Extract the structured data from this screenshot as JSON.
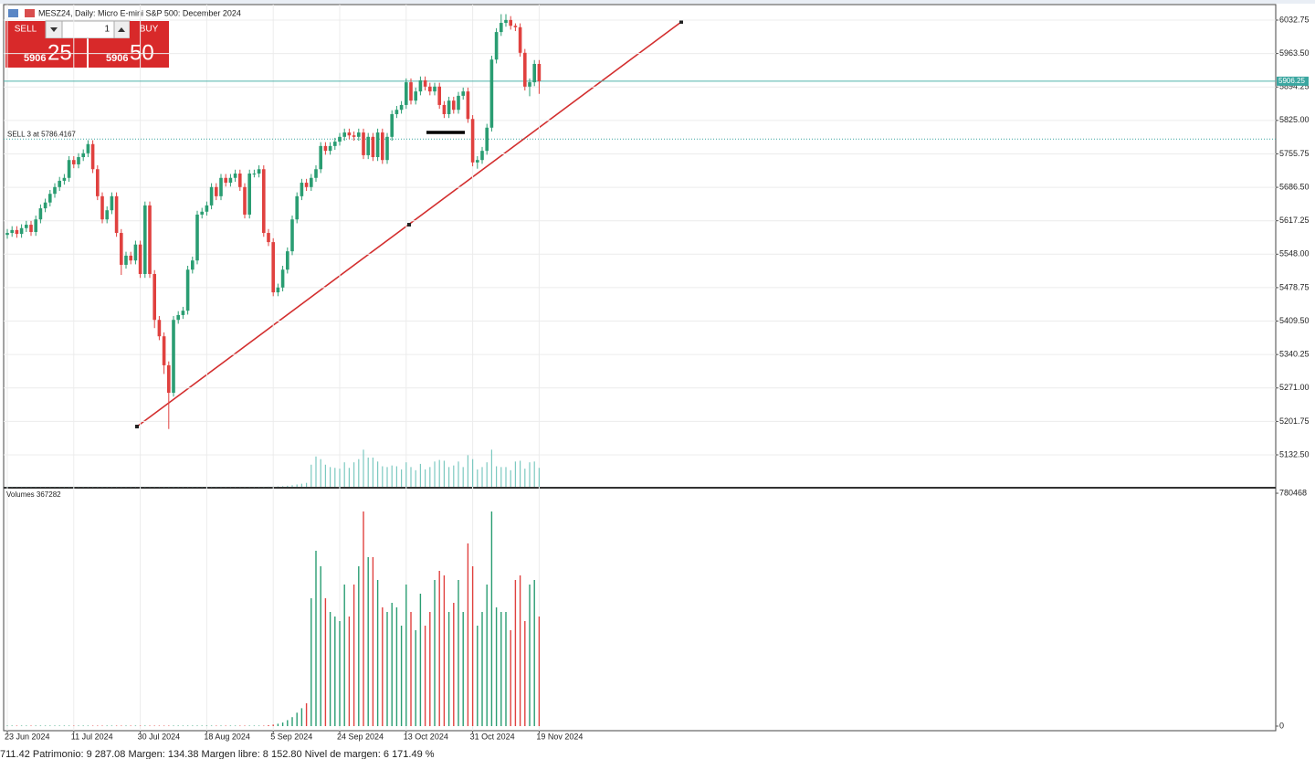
{
  "header": {
    "title": "MESZ24, Daily:  Micro E-mini S&P 500: December 2024"
  },
  "trade_panel": {
    "sell": "SELL",
    "buy": "BUY",
    "volume": "1",
    "bid_big": "5906",
    "bid_small": "25",
    "ask_big": "5906",
    "ask_small": "50"
  },
  "status_bar": "711.42  Patrimonio: 9 287.08  Margen: 134.38  Margen libre: 8 152.80  Nivel de margen: 6 171.49 %",
  "chart_data": [
    {
      "type": "candlestick",
      "up_color": "#2a9d72",
      "down_color": "#e0413f",
      "grid": true,
      "current_price": {
        "value": 5906.25,
        "label": "5906.25"
      },
      "order_line": {
        "value": 5786.4167,
        "label": "SELL 3 at 5786.4167"
      },
      "categories": [
        "23 Jun 2024",
        null,
        null,
        null,
        null,
        null,
        null,
        null,
        null,
        null,
        null,
        null,
        null,
        null,
        "11 Jul 2024",
        null,
        null,
        null,
        null,
        null,
        null,
        null,
        null,
        null,
        null,
        null,
        null,
        null,
        "30 Jul 2024",
        null,
        null,
        null,
        null,
        null,
        null,
        null,
        null,
        null,
        null,
        null,
        null,
        null,
        "18 Aug 2024",
        null,
        null,
        null,
        null,
        null,
        null,
        null,
        null,
        null,
        null,
        null,
        null,
        null,
        "5 Sep 2024",
        null,
        null,
        null,
        null,
        null,
        null,
        null,
        null,
        null,
        null,
        null,
        null,
        null,
        "24 Sep 2024",
        null,
        null,
        null,
        null,
        null,
        null,
        null,
        null,
        null,
        null,
        null,
        null,
        null,
        "13 Oct 2024",
        null,
        null,
        null,
        null,
        null,
        null,
        null,
        null,
        null,
        null,
        null,
        null,
        null,
        "31 Oct 2024",
        null,
        null,
        null,
        null,
        null,
        null,
        null,
        null,
        null,
        null,
        null,
        null,
        null,
        "19 Nov 2024"
      ],
      "open": [
        5588,
        5592,
        5598,
        5590,
        5602,
        5609,
        5594,
        5620,
        5643,
        5655,
        5673,
        5687,
        5700,
        5706,
        5743,
        5734,
        5749,
        5757,
        5776,
        5724,
        5668,
        5620,
        5639,
        5668,
        5592,
        5526,
        5545,
        5535,
        5568,
        5507,
        5649,
        5507,
        5412,
        5378,
        5318,
        5261,
        5412,
        5422,
        5431,
        5516,
        5535,
        5630,
        5636,
        5649,
        5687,
        5668,
        5706,
        5696,
        5706,
        5715,
        5687,
        5630,
        5715,
        5715,
        5724,
        5592,
        5573,
        5469,
        5479,
        5516,
        5554,
        5620,
        5668,
        5696,
        5687,
        5706,
        5724,
        5772,
        5762,
        5772,
        5781,
        5791,
        5800,
        5794,
        5791,
        5800,
        5753,
        5791,
        5749,
        5800,
        5743,
        5791,
        5838,
        5847,
        5857,
        5904,
        5866,
        5885,
        5908,
        5895,
        5885,
        5895,
        5857,
        5838,
        5866,
        5847,
        5876,
        5885,
        5828,
        5738,
        5743,
        5762,
        5810,
        5951,
        6008,
        6027,
        6033,
        6021,
        6018,
        5965,
        5895,
        5904,
        5942
      ],
      "high": [
        5600,
        5606,
        5606,
        5610,
        5617,
        5617,
        5628,
        5651,
        5663,
        5681,
        5695,
        5708,
        5714,
        5751,
        5751,
        5757,
        5765,
        5784,
        5784,
        5732,
        5676,
        5647,
        5676,
        5676,
        5600,
        5553,
        5553,
        5576,
        5576,
        5657,
        5657,
        5515,
        5420,
        5386,
        5326,
        5420,
        5430,
        5439,
        5524,
        5543,
        5638,
        5644,
        5657,
        5695,
        5695,
        5714,
        5714,
        5714,
        5723,
        5723,
        5695,
        5723,
        5723,
        5732,
        5732,
        5600,
        5581,
        5487,
        5524,
        5562,
        5628,
        5676,
        5704,
        5704,
        5714,
        5732,
        5780,
        5780,
        5780,
        5789,
        5799,
        5808,
        5808,
        5802,
        5808,
        5808,
        5799,
        5799,
        5808,
        5808,
        5799,
        5846,
        5855,
        5865,
        5912,
        5912,
        5893,
        5916,
        5916,
        5903,
        5903,
        5903,
        5865,
        5874,
        5874,
        5884,
        5893,
        5893,
        5836,
        5751,
        5770,
        5818,
        5959,
        6016,
        6045,
        6045,
        6041,
        6026,
        6026,
        5973,
        5912,
        5950,
        5950
      ],
      "low": [
        5580,
        5584,
        5582,
        5582,
        5594,
        5586,
        5586,
        5612,
        5635,
        5647,
        5665,
        5679,
        5692,
        5698,
        5726,
        5726,
        5741,
        5749,
        5716,
        5660,
        5612,
        5612,
        5631,
        5584,
        5505,
        5518,
        5527,
        5527,
        5499,
        5499,
        5499,
        5395,
        5370,
        5300,
        5186,
        5253,
        5404,
        5414,
        5423,
        5508,
        5527,
        5622,
        5628,
        5641,
        5660,
        5660,
        5688,
        5688,
        5698,
        5679,
        5622,
        5622,
        5707,
        5707,
        5584,
        5565,
        5461,
        5461,
        5471,
        5508,
        5546,
        5612,
        5660,
        5679,
        5679,
        5698,
        5716,
        5754,
        5754,
        5764,
        5773,
        5783,
        5786,
        5783,
        5783,
        5745,
        5745,
        5741,
        5741,
        5735,
        5735,
        5783,
        5830,
        5839,
        5849,
        5858,
        5858,
        5877,
        5887,
        5877,
        5877,
        5849,
        5830,
        5830,
        5839,
        5839,
        5868,
        5820,
        5730,
        5725,
        5735,
        5754,
        5802,
        5943,
        6000,
        6019,
        6013,
        6010,
        5957,
        5887,
        5875,
        5896,
        5880
      ],
      "close": [
        5592,
        5598,
        5590,
        5602,
        5609,
        5594,
        5620,
        5643,
        5655,
        5673,
        5687,
        5700,
        5706,
        5743,
        5734,
        5749,
        5757,
        5776,
        5724,
        5668,
        5620,
        5639,
        5668,
        5592,
        5526,
        5545,
        5535,
        5568,
        5507,
        5649,
        5507,
        5412,
        5378,
        5318,
        5261,
        5412,
        5422,
        5431,
        5516,
        5535,
        5630,
        5636,
        5649,
        5687,
        5668,
        5706,
        5696,
        5706,
        5715,
        5687,
        5630,
        5715,
        5715,
        5724,
        5592,
        5573,
        5469,
        5479,
        5516,
        5554,
        5620,
        5668,
        5696,
        5687,
        5706,
        5724,
        5772,
        5762,
        5772,
        5781,
        5791,
        5800,
        5794,
        5791,
        5800,
        5753,
        5791,
        5749,
        5800,
        5743,
        5791,
        5838,
        5847,
        5857,
        5904,
        5866,
        5885,
        5908,
        5895,
        5885,
        5895,
        5857,
        5838,
        5866,
        5847,
        5876,
        5885,
        5828,
        5738,
        5743,
        5762,
        5810,
        5951,
        6008,
        6027,
        6033,
        6021,
        6018,
        5965,
        5895,
        5904,
        5942,
        5906.25
      ],
      "ylim": [
        5066.3,
        6064.9
      ],
      "yticks": [
        6032.75,
        {
          "value": 5963.5,
          "label": "5963.50"
        },
        5894.25,
        {
          "value": 5825,
          "label": "5825.00"
        },
        5755.75,
        {
          "value": 5686.5,
          "label": "5686.50"
        },
        5617.25,
        {
          "value": 5548,
          "label": "5548.00"
        },
        5478.75,
        {
          "value": 5409.5,
          "label": "5409.50"
        },
        5340.25,
        {
          "value": 5271,
          "label": "5271.00"
        },
        5201.75,
        {
          "value": 5132.5,
          "label": "5132.50"
        }
      ]
    },
    {
      "type": "bar",
      "title": "Volumes 367282",
      "values": [
        1500,
        1500,
        1500,
        1500,
        1500,
        1500,
        1500,
        1500,
        1500,
        1500,
        1500,
        1500,
        1500,
        1500,
        1500,
        1500,
        1500,
        1500,
        1500,
        1500,
        1500,
        1500,
        1500,
        1500,
        1500,
        1500,
        1500,
        1500,
        1500,
        1500,
        1500,
        1500,
        1500,
        1500,
        1500,
        1500,
        1500,
        1500,
        1500,
        1500,
        1500,
        1500,
        1500,
        1500,
        1500,
        1500,
        1500,
        1500,
        1500,
        1500,
        1500,
        1500,
        1500,
        1500,
        1500,
        3000,
        5000,
        8000,
        12000,
        20000,
        30000,
        45000,
        60000,
        76500,
        428500,
        587700,
        535700,
        428500,
        382600,
        367300,
        352000,
        474500,
        367300,
        474500,
        535700,
        719300,
        566300,
        566300,
        489800,
        397900,
        382600,
        413200,
        397900,
        336700,
        474500,
        382600,
        321400,
        443800,
        336700,
        382600,
        489800,
        520400,
        505100,
        382600,
        413200,
        489800,
        382600,
        612200,
        535700,
        336700,
        382600,
        474500,
        719300,
        397900,
        382600,
        382600,
        321400,
        489800,
        505100,
        352000,
        474500,
        489800,
        367282
      ],
      "ylim": [
        -15305,
        795860
      ],
      "yticks": [
        0,
        780468
      ]
    }
  ]
}
